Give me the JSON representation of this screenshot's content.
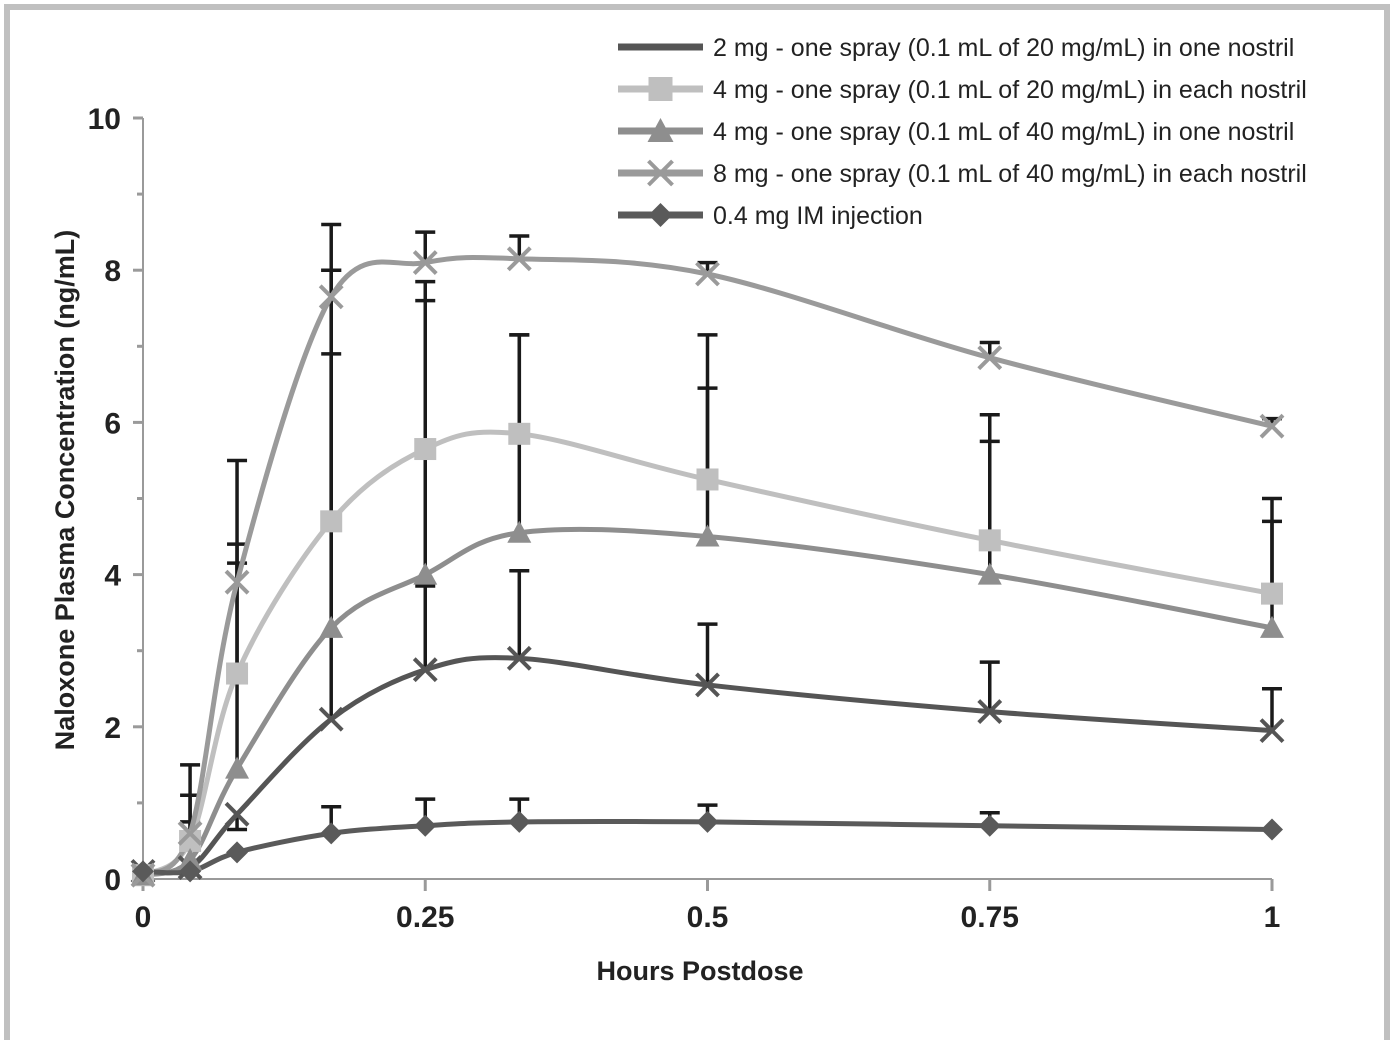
{
  "chart_data": {
    "type": "line",
    "title": "",
    "xlabel": "Hours Postdose",
    "ylabel": "Naloxone Plasma Concentration (ng/mL)",
    "xlim": [
      0,
      1
    ],
    "ylim": [
      0,
      10
    ],
    "x_ticks": [
      "0",
      "0.25",
      "0.5",
      "0.75",
      "1"
    ],
    "y_ticks": [
      "0",
      "2",
      "4",
      "6",
      "8",
      "10"
    ],
    "x": [
      0,
      0.0417,
      0.0833,
      0.1667,
      0.25,
      0.3333,
      0.5,
      0.75,
      1
    ],
    "legend_position": "top-right",
    "series": [
      {
        "name": "2 mg - one spray (0.1 mL of 20 mg/mL) in one nostril",
        "color": "#555555",
        "marker": "x",
        "values": [
          0.1,
          0.15,
          0.85,
          2.1,
          2.75,
          2.9,
          2.55,
          2.2,
          1.95
        ],
        "error_upper": [
          null,
          null,
          0.65,
          6.9,
          3.85,
          4.05,
          3.35,
          2.85,
          2.5
        ]
      },
      {
        "name": "4 mg - one spray (0.1 mL of 20 mg/mL) in each nostril",
        "color": "#bfbfbf",
        "marker": "square",
        "values": [
          0.05,
          0.5,
          2.7,
          4.7,
          5.65,
          5.85,
          5.25,
          4.45,
          3.75
        ],
        "error_upper": [
          null,
          1.1,
          4.4,
          8.0,
          7.6,
          7.15,
          6.45,
          5.75,
          4.7
        ]
      },
      {
        "name": "4 mg - one spray (0.1 mL of 40 mg/mL) in one nostril",
        "color": "#8e8e8e",
        "marker": "triangle",
        "values": [
          0.05,
          0.25,
          1.45,
          3.3,
          4.0,
          4.55,
          4.5,
          4.0,
          3.3
        ],
        "error_upper": [
          null,
          0.75,
          4.15,
          8.0,
          7.85,
          7.15,
          7.15,
          6.1,
          5.0
        ]
      },
      {
        "name": "8 mg - one spray (0.1 mL of 40 mg/mL) in each nostril",
        "color": "#9a9a9a",
        "marker": "cross",
        "values": [
          0.05,
          0.6,
          3.9,
          7.65,
          8.1,
          8.15,
          7.95,
          6.85,
          5.95
        ],
        "error_upper": [
          null,
          1.5,
          5.5,
          8.6,
          8.5,
          8.45,
          8.1,
          7.05,
          6.05
        ]
      },
      {
        "name": "0.4 mg IM injection",
        "color": "#5a5a5a",
        "marker": "diamond",
        "values": [
          0.1,
          0.1,
          0.35,
          0.6,
          0.7,
          0.75,
          0.75,
          0.7,
          0.65
        ],
        "error_upper": [
          null,
          null,
          null,
          0.95,
          1.05,
          1.05,
          0.97,
          0.87,
          null
        ]
      }
    ]
  }
}
